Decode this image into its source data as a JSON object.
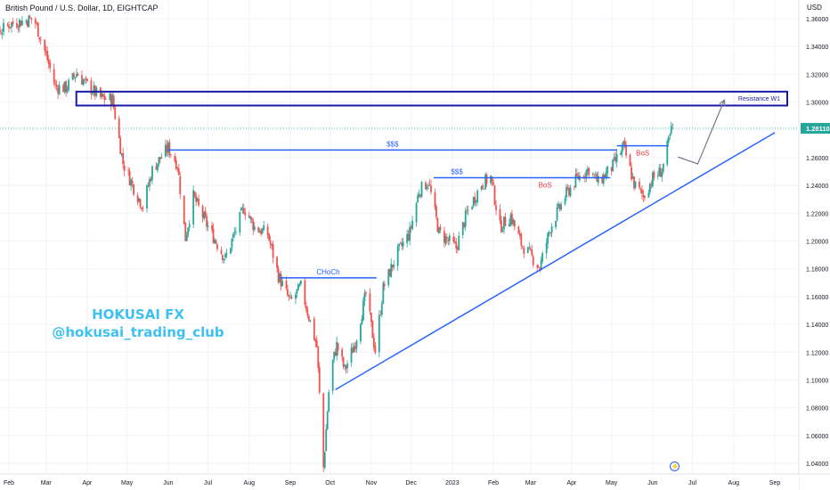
{
  "header": {
    "title": "British Pound / U.S. Dollar, 1D, EIGHTCAP"
  },
  "currency_label": "USD",
  "watermark": {
    "line1": "HOKUSAI FX",
    "line2": "@hokusai_trading_club"
  },
  "chart_data": {
    "type": "candlestick",
    "symbol": "British Pound / U.S. Dollar",
    "interval": "1D",
    "broker": "EIGHTCAP",
    "currency": "USD",
    "last_price": 1.2811,
    "ylim": [
      1.0335,
      1.3745
    ],
    "y_ticks": [
      "1.36000",
      "1.34000",
      "1.32000",
      "1.30000",
      "1.28000",
      "1.26000",
      "1.24000",
      "1.22000",
      "1.20000",
      "1.18000",
      "1.16000",
      "1.14000",
      "1.12000",
      "1.10000",
      "1.08000",
      "1.06000",
      "1.04000"
    ],
    "x_ticks": [
      "Feb",
      "Mar",
      "Apr",
      "May",
      "Jun",
      "Jul",
      "Aug",
      "Sep",
      "Oct",
      "Nov",
      "Dec",
      "2023",
      "Feb",
      "Mar",
      "Apr",
      "May",
      "Jun",
      "Jul",
      "Aug",
      "Sep"
    ],
    "x_tick_dates": [
      "2022-02-01",
      "2022-03-01",
      "2022-04-01",
      "2022-05-01",
      "2022-06-01",
      "2022-07-01",
      "2022-08-01",
      "2022-09-01",
      "2022-10-01",
      "2022-11-01",
      "2022-12-01",
      "2023-01-01",
      "2023-02-01",
      "2023-03-01",
      "2023-04-01",
      "2023-05-01",
      "2023-06-01",
      "2023-07-01",
      "2023-08-01",
      "2023-09-01"
    ],
    "price_path": [
      [
        "2022-01-03",
        1.35
      ],
      [
        "2022-01-13",
        1.372
      ],
      [
        "2022-01-22",
        1.348
      ],
      [
        "2022-02-01",
        1.356
      ],
      [
        "2022-02-10",
        1.358
      ],
      [
        "2022-02-20",
        1.36
      ],
      [
        "2022-03-01",
        1.334
      ],
      [
        "2022-03-08",
        1.311
      ],
      [
        "2022-03-16",
        1.31
      ],
      [
        "2022-03-24",
        1.321
      ],
      [
        "2022-03-31",
        1.313
      ],
      [
        "2022-04-11",
        1.303
      ],
      [
        "2022-04-20",
        1.302
      ],
      [
        "2022-04-28",
        1.256
      ],
      [
        "2022-05-07",
        1.236
      ],
      [
        "2022-05-13",
        1.225
      ],
      [
        "2022-05-20",
        1.251
      ],
      [
        "2022-05-27",
        1.261
      ],
      [
        "2022-06-01",
        1.267
      ],
      [
        "2022-06-08",
        1.255
      ],
      [
        "2022-06-14",
        1.202
      ],
      [
        "2022-06-20",
        1.232
      ],
      [
        "2022-06-30",
        1.212
      ],
      [
        "2022-07-14",
        1.187
      ],
      [
        "2022-07-28",
        1.224
      ],
      [
        "2022-08-05",
        1.21
      ],
      [
        "2022-08-15",
        1.205
      ],
      [
        "2022-08-23",
        1.175
      ],
      [
        "2022-09-01",
        1.156
      ],
      [
        "2022-09-09",
        1.167
      ],
      [
        "2022-09-21",
        1.124
      ],
      [
        "2022-09-26",
        1.037
      ],
      [
        "2022-10-01",
        1.105
      ],
      [
        "2022-10-06",
        1.125
      ],
      [
        "2022-10-12",
        1.107
      ],
      [
        "2022-10-20",
        1.127
      ],
      [
        "2022-10-28",
        1.162
      ],
      [
        "2022-11-04",
        1.121
      ],
      [
        "2022-11-10",
        1.166
      ],
      [
        "2022-11-20",
        1.19
      ],
      [
        "2022-11-30",
        1.206
      ],
      [
        "2022-12-07",
        1.236
      ],
      [
        "2022-12-14",
        1.243
      ],
      [
        "2022-12-22",
        1.206
      ],
      [
        "2023-01-04",
        1.195
      ],
      [
        "2023-01-12",
        1.22
      ],
      [
        "2023-01-23",
        1.241
      ],
      [
        "2023-01-30",
        1.246
      ],
      [
        "2023-02-06",
        1.21
      ],
      [
        "2023-02-14",
        1.218
      ],
      [
        "2023-02-22",
        1.198
      ],
      [
        "2023-03-08",
        1.181
      ],
      [
        "2023-03-16",
        1.21
      ],
      [
        "2023-03-28",
        1.234
      ],
      [
        "2023-04-05",
        1.245
      ],
      [
        "2023-04-14",
        1.252
      ],
      [
        "2023-04-21",
        1.242
      ],
      [
        "2023-05-02",
        1.254
      ],
      [
        "2023-05-10",
        1.268
      ],
      [
        "2023-05-18",
        1.241
      ],
      [
        "2023-05-25",
        1.232
      ],
      [
        "2023-06-01",
        1.245
      ],
      [
        "2023-06-08",
        1.251
      ],
      [
        "2023-06-16",
        1.283
      ]
    ],
    "annotations": [
      {
        "kind": "zone",
        "label": "Resistance W1",
        "y_range": [
          1.2975,
          1.3075
        ],
        "x_range": [
          "2022-03-01",
          "2023-09-01"
        ]
      },
      {
        "kind": "hline",
        "label": "$$$",
        "y": 1.2655,
        "x_range": [
          "2022-06-01",
          "2023-05-05"
        ],
        "color": "#2962ff"
      },
      {
        "kind": "hline",
        "label": "$$$",
        "y": 1.2455,
        "x_range": [
          "2022-12-18",
          "2023-01-22"
        ],
        "color": "#2962ff"
      },
      {
        "kind": "hline",
        "label": "BoS",
        "y": 1.2455,
        "x_range": [
          "2023-01-22",
          "2023-04-30"
        ],
        "color": "#f23645"
      },
      {
        "kind": "hline",
        "label": "BoS",
        "y": 1.2685,
        "x_range": [
          "2023-05-05",
          "2023-06-13"
        ],
        "color": "#f23645"
      },
      {
        "kind": "hline",
        "label": "CHoCh",
        "y": 1.1735,
        "x_range": [
          "2022-08-24",
          "2022-11-05"
        ],
        "color": "#2962ff"
      },
      {
        "kind": "trendline",
        "label": "",
        "from": [
          "2022-10-05",
          1.093
        ],
        "to": [
          "2023-09-01",
          1.278
        ],
        "color": "#2962ff"
      },
      {
        "kind": "arrow",
        "label": "",
        "points": [
          [
            "2023-06-20",
            1.2605
          ],
          [
            "2023-07-05",
            1.2555
          ],
          [
            "2023-07-25",
            1.3015
          ]
        ],
        "color": "#787b86"
      }
    ]
  },
  "colors": {
    "up": "#26a69a",
    "down": "#ef5350",
    "blue": "#2962ff",
    "zone": "#1a1aa8",
    "red_label": "#f23645",
    "axis_text": "#131722",
    "grid": "#f0f3fa",
    "price_line": "#26a69a",
    "arrow": "#787b86"
  }
}
